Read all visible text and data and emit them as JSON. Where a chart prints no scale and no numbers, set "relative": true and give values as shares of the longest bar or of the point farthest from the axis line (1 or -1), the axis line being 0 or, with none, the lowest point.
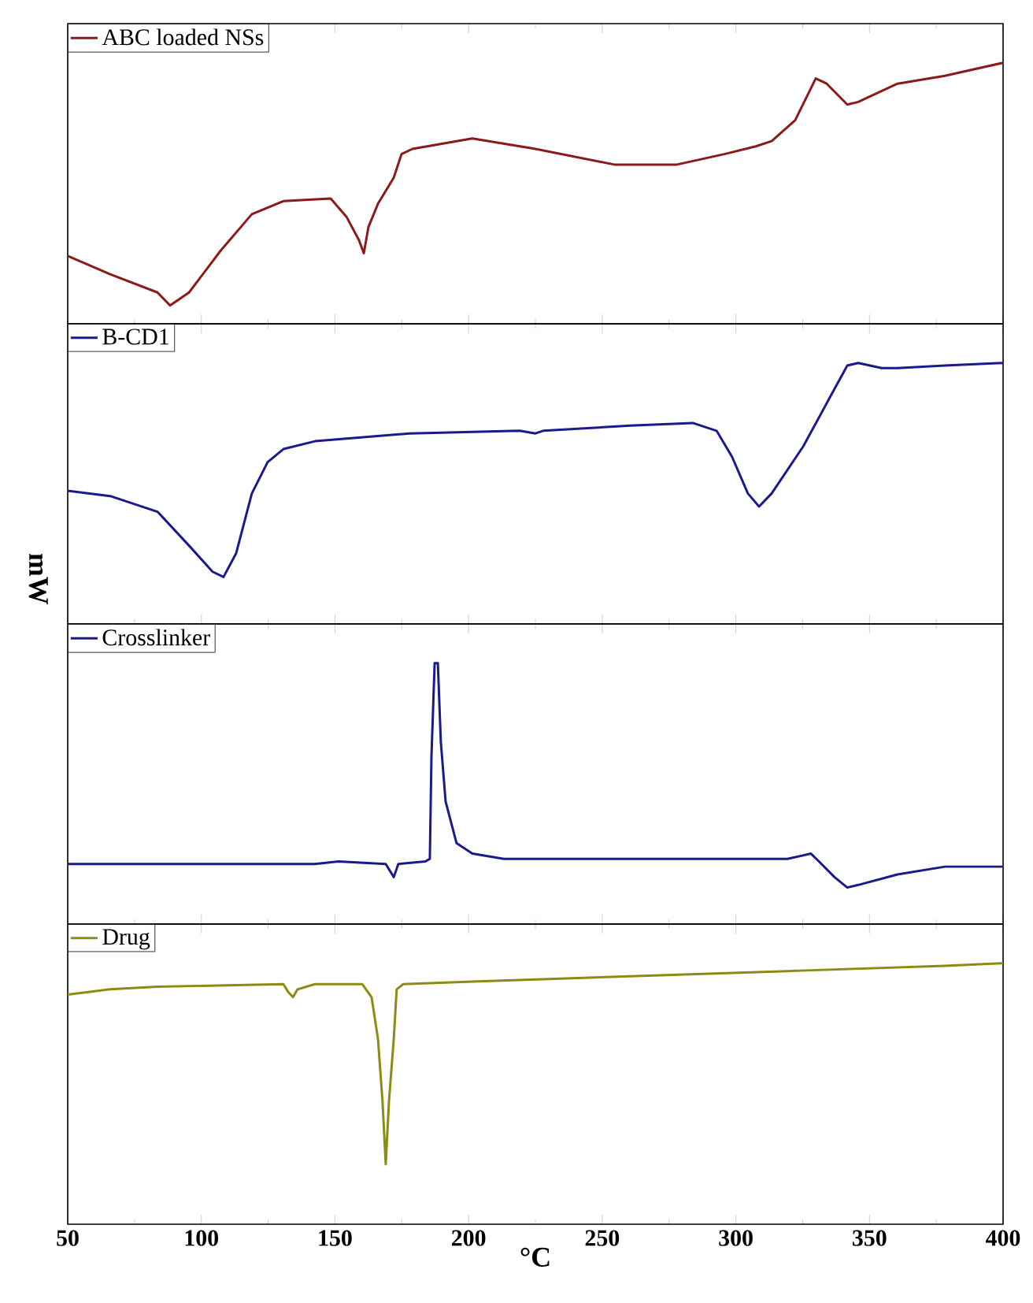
{
  "chart_data": [
    {
      "type": "line",
      "relative": true,
      "legend": "top left",
      "tick_labels": false,
      "xlim": [
        50,
        400
      ],
      "xticks": [
        50,
        100,
        150,
        200,
        250,
        300,
        350,
        400
      ],
      "series": [
        {
          "name": "ABC loaded NSs",
          "color": "#8b1a1a",
          "x": [
            50,
            65.9,
            83.6,
            88.3,
            95.4,
            107.2,
            118.9,
            130.7,
            148.4,
            154.3,
            159,
            160.8,
            162.5,
            166.1,
            172,
            174.9,
            179,
            201.4,
            225,
            254.5,
            278,
            295.7,
            307.5,
            313.4,
            322.2,
            329.9,
            334,
            341.7,
            345.8,
            360.5,
            378.2,
            400
          ],
          "values": [
            0.26,
            0.19,
            0.12,
            0.07,
            0.12,
            0.28,
            0.42,
            0.47,
            0.48,
            0.41,
            0.32,
            0.27,
            0.37,
            0.46,
            0.56,
            0.65,
            0.67,
            0.71,
            0.67,
            0.61,
            0.61,
            0.65,
            0.68,
            0.7,
            0.78,
            0.94,
            0.92,
            0.84,
            0.85,
            0.92,
            0.95,
            1
          ]
        }
      ]
    },
    {
      "type": "line",
      "relative": true,
      "legend": "top left",
      "tick_labels": false,
      "ylabel": "mW",
      "xlim": [
        50,
        400
      ],
      "xticks": [
        50,
        100,
        150,
        200,
        250,
        300,
        350,
        400
      ],
      "series": [
        {
          "name": "B-CD1",
          "color": "#1a1a8c",
          "x": [
            50,
            65.9,
            83.6,
            95.4,
            104.2,
            108.3,
            113,
            118.9,
            124.8,
            130.7,
            142.5,
            177.9,
            219.1,
            225,
            227.9,
            260.4,
            283.9,
            292.8,
            298.6,
            304.5,
            308.7,
            313.4,
            325.2,
            336.9,
            341.7,
            345.8,
            354.6,
            360.5,
            378.2,
            400
          ],
          "values": [
            0.51,
            0.49,
            0.43,
            0.3,
            0.2,
            0.18,
            0.27,
            0.5,
            0.62,
            0.67,
            0.7,
            0.73,
            0.74,
            0.73,
            0.74,
            0.76,
            0.77,
            0.74,
            0.64,
            0.5,
            0.45,
            0.5,
            0.68,
            0.9,
            0.99,
            1,
            0.98,
            0.98,
            0.99,
            1
          ]
        }
      ]
    },
    {
      "type": "line",
      "relative": true,
      "legend": "top left",
      "tick_labels": false,
      "xlim": [
        50,
        400
      ],
      "xticks": [
        50,
        100,
        150,
        200,
        250,
        300,
        350,
        400
      ],
      "series": [
        {
          "name": "Crosslinker",
          "color": "#1a1a8c",
          "x": [
            50,
            142.5,
            151.3,
            169,
            172,
            173.7,
            183.8,
            185.5,
            186.1,
            187.3,
            188.5,
            189.6,
            191.4,
            195.5,
            201.4,
            213.2,
            260.4,
            319.3,
            328.1,
            331.1,
            336.9,
            341.7,
            345.8,
            360.5,
            378.2,
            400
          ],
          "values": [
            0.23,
            0.23,
            0.24,
            0.23,
            0.18,
            0.23,
            0.24,
            0.25,
            0.64,
            1,
            1,
            0.7,
            0.47,
            0.31,
            0.27,
            0.25,
            0.25,
            0.25,
            0.27,
            0.24,
            0.18,
            0.14,
            0.15,
            0.19,
            0.22,
            0.22
          ]
        }
      ]
    },
    {
      "type": "line",
      "relative": true,
      "legend": "top left",
      "tick_labels": "x",
      "xlabel": "°C",
      "xlim": [
        50,
        400
      ],
      "xticks": [
        50,
        100,
        150,
        200,
        250,
        300,
        350,
        400
      ],
      "series": [
        {
          "name": "Drug",
          "color": "#8c8c14",
          "x": [
            50,
            65.9,
            83.6,
            130.7,
            132.5,
            134.3,
            136,
            142.5,
            160.2,
            163.7,
            166.1,
            167.8,
            169,
            170.2,
            172,
            173.1,
            175.5,
            201.4,
            260.4,
            319.3,
            378.2,
            400
          ],
          "values": [
            0.88,
            0.9,
            0.91,
            0.92,
            0.89,
            0.87,
            0.9,
            0.92,
            0.92,
            0.87,
            0.71,
            0.47,
            0.23,
            0.47,
            0.71,
            0.9,
            0.92,
            0.93,
            0.95,
            0.97,
            0.99,
            1
          ]
        }
      ]
    }
  ]
}
